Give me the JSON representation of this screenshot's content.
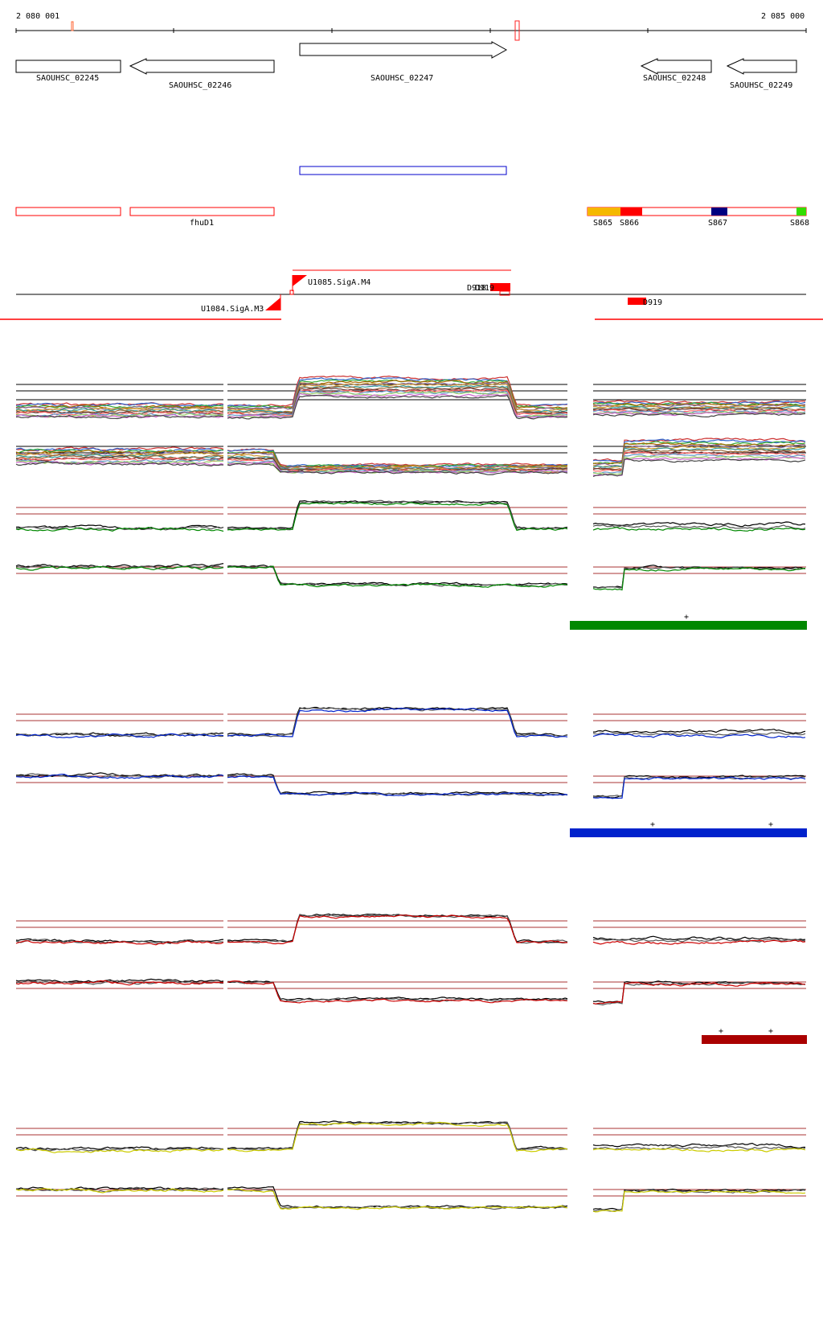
{
  "coordinates": {
    "start_label": "2 080 001",
    "end_label": "2 085 000"
  },
  "genes": [
    {
      "id": "g1",
      "label": "SAOUHSC_02245",
      "strand": "none"
    },
    {
      "id": "g2",
      "label": "SAOUHSC_02246",
      "strand": "minus"
    },
    {
      "id": "g3",
      "label": "SAOUHSC_02247",
      "strand": "plus"
    },
    {
      "id": "g4",
      "label": "SAOUHSC_02248",
      "strand": "minus"
    },
    {
      "id": "g5",
      "label": "SAOUHSC_02249",
      "strand": "minus"
    }
  ],
  "operon_labels": {
    "fhu": "fhuD1"
  },
  "segments": [
    {
      "label": "S865",
      "color": "#f5b800"
    },
    {
      "label": "S866",
      "color": "#ff0000"
    },
    {
      "label": "S867",
      "color": "#000080"
    },
    {
      "label": "S868",
      "color": "#33dd00"
    }
  ],
  "regulatory": {
    "upstream_top": "U1085.SigA.M4",
    "upstream_bottom": "U1084.SigA.M3",
    "downstream_top": "D918",
    "downstream_overlap": "D919",
    "downstream_right": "D919"
  },
  "condition_colors": {
    "green": "#008800",
    "blue": "#0022cc",
    "red": "#aa0000",
    "yellow": "#cccc00"
  },
  "plus_marker": "+"
}
